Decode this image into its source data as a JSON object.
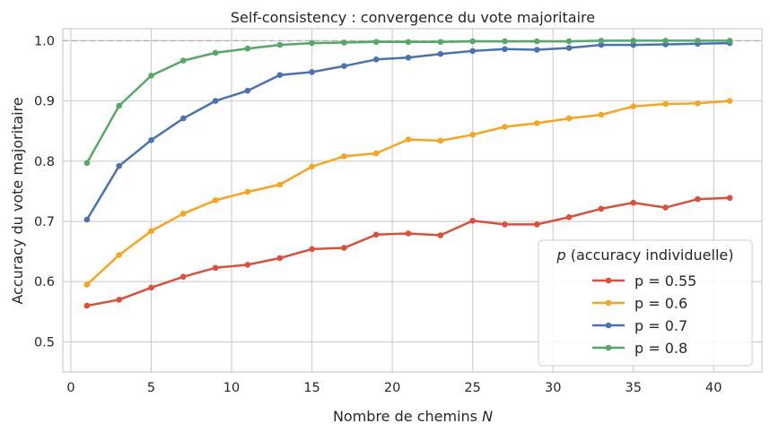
{
  "chart_data": {
    "type": "line",
    "title": "Self-consistency : convergence du vote majoritaire",
    "xlabel_text": "Nombre de chemins ",
    "xlabel_var": "N",
    "ylabel": "Accuracy du vote majoritaire",
    "xlim": [
      -0.5,
      43
    ],
    "ylim": [
      0.45,
      1.02
    ],
    "xticks": [
      0,
      5,
      10,
      15,
      20,
      25,
      30,
      35,
      40
    ],
    "yticks": [
      0.5,
      0.6,
      0.7,
      0.8,
      0.9,
      1.0
    ],
    "xtick_labels": [
      "0",
      "5",
      "10",
      "15",
      "20",
      "25",
      "30",
      "35",
      "40"
    ],
    "ytick_labels": [
      "0.5",
      "0.6",
      "0.7",
      "0.8",
      "0.9",
      "1.0"
    ],
    "reference_line": 1.0,
    "grid": true,
    "legend": {
      "title_var": "p",
      "title_text": " (accuracy individuelle)",
      "position": "lower-right"
    },
    "x": [
      1,
      3,
      5,
      7,
      9,
      11,
      13,
      15,
      17,
      19,
      21,
      23,
      25,
      27,
      29,
      31,
      33,
      35,
      37,
      39,
      41
    ],
    "series": [
      {
        "name": "p = 0.55",
        "color": "#dd4f3a",
        "values": [
          0.56,
          0.57,
          0.59,
          0.608,
          0.623,
          0.628,
          0.639,
          0.654,
          0.656,
          0.678,
          0.68,
          0.677,
          0.701,
          0.695,
          0.695,
          0.707,
          0.721,
          0.731,
          0.723,
          0.737,
          0.739
        ]
      },
      {
        "name": "p = 0.6",
        "color": "#f9a51b",
        "values": [
          0.595,
          0.644,
          0.684,
          0.713,
          0.735,
          0.749,
          0.761,
          0.791,
          0.808,
          0.813,
          0.836,
          0.834,
          0.844,
          0.857,
          0.863,
          0.871,
          0.877,
          0.891,
          0.895,
          0.896,
          0.9
        ]
      },
      {
        "name": "p = 0.7",
        "color": "#4a72b0",
        "values": [
          0.703,
          0.792,
          0.835,
          0.871,
          0.9,
          0.917,
          0.943,
          0.948,
          0.958,
          0.969,
          0.972,
          0.978,
          0.983,
          0.986,
          0.985,
          0.988,
          0.993,
          0.993,
          0.994,
          0.995,
          0.996
        ]
      },
      {
        "name": "p = 0.8",
        "color": "#55a868",
        "values": [
          0.797,
          0.892,
          0.942,
          0.967,
          0.98,
          0.987,
          0.993,
          0.996,
          0.997,
          0.998,
          0.998,
          0.998,
          0.999,
          0.999,
          0.999,
          0.999,
          1.0,
          1.0,
          1.0,
          1.0,
          1.0
        ]
      }
    ]
  }
}
